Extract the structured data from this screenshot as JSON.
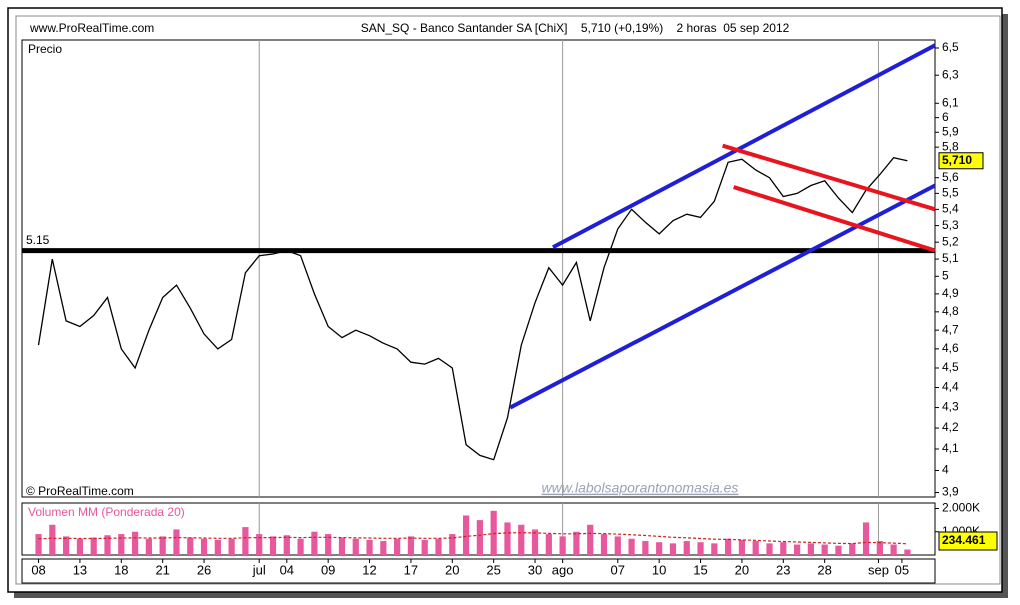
{
  "header": {
    "site": "www.ProRealTime.com",
    "title": "SAN_SQ - Banco Santander SA [ChiX]    5,710 (+0,19%)    2 horas  05 sep 2012"
  },
  "chart_data": [
    {
      "type": "line",
      "subtitle": "Precio",
      "source": "© ProRealTime.com",
      "watermark": "www.labolsaporantonomasia.es",
      "log_scale": true,
      "x": [
        0,
        1,
        2,
        3,
        4,
        5,
        6,
        7,
        8,
        9,
        10,
        11,
        12,
        13,
        14,
        15,
        16,
        17,
        18,
        19,
        20,
        21,
        22,
        23,
        24,
        25,
        26,
        27,
        28,
        29,
        30,
        31,
        32,
        33,
        34,
        35,
        36,
        37,
        38,
        39,
        40,
        41,
        42,
        43,
        44,
        45,
        46,
        47,
        48,
        49,
        50,
        51,
        52,
        53,
        54,
        55,
        56,
        57,
        58,
        59,
        60,
        61,
        62,
        63
      ],
      "series": [
        {
          "color": "#000000",
          "values": [
            4.62,
            5.1,
            4.75,
            4.72,
            4.78,
            4.88,
            4.6,
            4.5,
            4.7,
            4.88,
            4.95,
            4.82,
            4.68,
            4.6,
            4.65,
            5.02,
            5.12,
            5.13,
            5.15,
            5.12,
            4.9,
            4.72,
            4.66,
            4.7,
            4.67,
            4.63,
            4.6,
            4.53,
            4.52,
            4.55,
            4.5,
            4.12,
            4.07,
            4.05,
            4.25,
            4.62,
            4.85,
            5.05,
            4.95,
            5.08,
            4.75,
            5.05,
            5.28,
            5.4,
            5.32,
            5.25,
            5.33,
            5.37,
            5.35,
            5.45,
            5.7,
            5.72,
            5.65,
            5.6,
            5.48,
            5.5,
            5.55,
            5.58,
            5.47,
            5.38,
            5.52,
            5.62,
            5.73,
            5.71
          ]
        }
      ],
      "last_label": "5,710",
      "hline": {
        "value": 5.15,
        "color": "#000000"
      },
      "trendlines": [
        {
          "color": "#1f1fd6",
          "x": [
            37.3,
            65
          ],
          "values": [
            5.17,
            6.52
          ]
        },
        {
          "color": "#1f1fd6",
          "x": [
            34.2,
            65
          ],
          "values": [
            4.3,
            5.55
          ]
        },
        {
          "color": "#e8141e",
          "x": [
            49.6,
            65
          ],
          "values": [
            5.81,
            5.4
          ]
        },
        {
          "color": "#e8141e",
          "x": [
            50.4,
            65
          ],
          "values": [
            5.54,
            5.15
          ]
        }
      ],
      "xlim": [
        -1.2,
        65
      ],
      "ylim": [
        3.88,
        6.56
      ],
      "xticks": [
        {
          "value": 0,
          "label": "08"
        },
        {
          "value": 3,
          "label": "13"
        },
        {
          "value": 6,
          "label": "18"
        },
        {
          "value": 9,
          "label": "21"
        },
        {
          "value": 12,
          "label": "26"
        },
        {
          "value": 16,
          "label": "jul"
        },
        {
          "value": 18,
          "label": "04"
        },
        {
          "value": 21,
          "label": "09"
        },
        {
          "value": 24,
          "label": "12"
        },
        {
          "value": 27,
          "label": "17"
        },
        {
          "value": 30,
          "label": "20"
        },
        {
          "value": 33,
          "label": "25"
        },
        {
          "value": 36,
          "label": "30"
        },
        {
          "value": 38,
          "label": "ago"
        },
        {
          "value": 42,
          "label": "07"
        },
        {
          "value": 45,
          "label": "10"
        },
        {
          "value": 48,
          "label": "15"
        },
        {
          "value": 51,
          "label": "20"
        },
        {
          "value": 54,
          "label": "23"
        },
        {
          "value": 57,
          "label": "28"
        },
        {
          "value": 60.9,
          "label": "sep"
        },
        {
          "value": 62.6,
          "label": "05"
        }
      ],
      "yticks": [
        {
          "value": 6.5,
          "label": "6,5"
        },
        {
          "value": 6.3,
          "label": "6,3"
        },
        {
          "value": 6.1,
          "label": "6,1"
        },
        6,
        {
          "value": 5.9,
          "label": "5,9"
        },
        {
          "value": 5.8,
          "label": "5,8"
        },
        {
          "value": 5.6,
          "label": "5,6"
        },
        {
          "value": 5.5,
          "label": "5,5"
        },
        {
          "value": 5.4,
          "label": "5,4"
        },
        {
          "value": 5.3,
          "label": "5,3"
        },
        {
          "value": 5.2,
          "label": "5,2"
        },
        {
          "value": 5.1,
          "label": "5,1"
        },
        5,
        {
          "value": 4.9,
          "label": "4,9"
        },
        {
          "value": 4.8,
          "label": "4,8"
        },
        {
          "value": 4.7,
          "label": "4,7"
        },
        {
          "value": 4.6,
          "label": "4,6"
        },
        {
          "value": 4.5,
          "label": "4,5"
        },
        {
          "value": 4.4,
          "label": "4,4"
        },
        {
          "value": 4.3,
          "label": "4,3"
        },
        {
          "value": 4.2,
          "label": "4,2"
        },
        {
          "value": 4.1,
          "label": "4,1"
        },
        4,
        {
          "value": 3.9,
          "label": "3,9"
        }
      ]
    },
    {
      "type": "bar",
      "title": "Volumen MM (Ponderada 20)",
      "x": [
        0,
        1,
        2,
        3,
        4,
        5,
        6,
        7,
        8,
        9,
        10,
        11,
        12,
        13,
        14,
        15,
        16,
        17,
        18,
        19,
        20,
        21,
        22,
        23,
        24,
        25,
        26,
        27,
        28,
        29,
        30,
        31,
        32,
        33,
        34,
        35,
        36,
        37,
        38,
        39,
        40,
        41,
        42,
        43,
        44,
        45,
        46,
        47,
        48,
        49,
        50,
        51,
        52,
        53,
        54,
        55,
        56,
        57,
        58,
        59,
        60,
        61,
        62,
        63
      ],
      "series": [
        {
          "color": "#e8589c",
          "values": [
            900,
            1300,
            800,
            700,
            750,
            850,
            900,
            1000,
            700,
            800,
            1100,
            750,
            700,
            650,
            700,
            1200,
            900,
            800,
            850,
            700,
            1000,
            900,
            750,
            700,
            650,
            600,
            700,
            800,
            650,
            700,
            900,
            1700,
            1500,
            1900,
            1400,
            1300,
            1100,
            900,
            800,
            1000,
            1300,
            900,
            800,
            700,
            600,
            550,
            500,
            600,
            550,
            500,
            700,
            650,
            600,
            500,
            550,
            450,
            500,
            450,
            400,
            500,
            1400,
            600,
            450,
            234.461
          ]
        },
        {
          "color": "#d02020",
          "dashed": true,
          "values": [
            700,
            720,
            720,
            710,
            710,
            720,
            730,
            740,
            730,
            730,
            750,
            740,
            730,
            720,
            720,
            740,
            750,
            750,
            760,
            750,
            760,
            760,
            750,
            740,
            730,
            720,
            720,
            730,
            720,
            720,
            730,
            800,
            850,
            920,
            950,
            960,
            950,
            930,
            910,
            910,
            930,
            920,
            900,
            870,
            840,
            800,
            760,
            740,
            710,
            680,
            670,
            650,
            630,
            600,
            580,
            560,
            540,
            520,
            500,
            490,
            540,
            530,
            510,
            480
          ]
        }
      ],
      "xlim": [
        -1.2,
        65
      ],
      "ylim": [
        0,
        2150
      ],
      "yticks": [
        {
          "value": 2000,
          "label": "2.000K"
        },
        {
          "value": 1000,
          "label": "1.000K"
        }
      ]
    }
  ]
}
